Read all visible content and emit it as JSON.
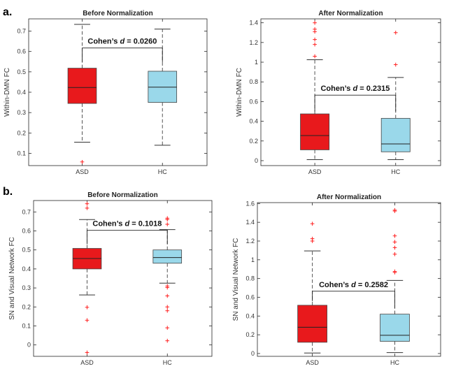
{
  "panel_labels": {
    "a": "a.",
    "b": "b."
  },
  "colors": {
    "asd": "#e8191c",
    "hc": "#9ad8ea",
    "outlier": "#ff2020",
    "whisker": "#555555",
    "median": "#222222"
  },
  "chart_data": [
    {
      "id": "a-left",
      "type": "boxplot",
      "title": "Before Normalization",
      "ylabel": "Within-DMN FC",
      "xlabel": "",
      "categories": [
        "ASD",
        "HC"
      ],
      "ylim": [
        0.04,
        0.76
      ],
      "yticks": [
        "0.1",
        "0.2",
        "0.3",
        "0.4",
        "0.5",
        "0.6",
        "0.7"
      ],
      "series": [
        {
          "name": "ASD",
          "q1": 0.345,
          "median": 0.423,
          "q3": 0.518,
          "whisker_low": 0.155,
          "whisker_high": 0.733,
          "outliers": [
            0.058
          ]
        },
        {
          "name": "HC",
          "q1": 0.35,
          "median": 0.425,
          "q3": 0.503,
          "whisker_low": 0.14,
          "whisker_high": 0.71,
          "outliers": []
        }
      ],
      "annotation": {
        "prefix": "Cohen’s ",
        "symbol": "d",
        "value": " = 0.0260",
        "bracket_y": 0.617,
        "left_y": 0.548,
        "right_y": 0.548
      }
    },
    {
      "id": "a-right",
      "type": "boxplot",
      "title": "After Normalization",
      "ylabel": "Within-DMN FC",
      "xlabel": "",
      "categories": [
        "ASD",
        "HC"
      ],
      "ylim": [
        -0.05,
        1.44
      ],
      "yticks": [
        "0",
        "0.2",
        "0.4",
        "0.6",
        "0.8",
        "1",
        "1.2",
        "1.4"
      ],
      "series": [
        {
          "name": "ASD",
          "q1": 0.11,
          "median": 0.255,
          "q3": 0.475,
          "whisker_low": 0.01,
          "whisker_high": 1.025,
          "outliers": [
            1.06,
            1.18,
            1.23,
            1.31,
            1.335,
            1.4
          ]
        },
        {
          "name": "HC",
          "q1": 0.09,
          "median": 0.17,
          "q3": 0.43,
          "whisker_low": 0.01,
          "whisker_high": 0.845,
          "outliers": [
            0.975,
            1.3
          ]
        }
      ],
      "annotation": {
        "prefix": "Cohen’s ",
        "symbol": "d",
        "value": " = 0.2315",
        "bracket_y": 0.665,
        "left_y": 0.5,
        "right_y": 0.5
      }
    },
    {
      "id": "b-left",
      "type": "boxplot",
      "title": "Before Normalization",
      "ylabel": "SN and Visual Network FC",
      "xlabel": "",
      "categories": [
        "ASD",
        "HC"
      ],
      "ylim": [
        -0.06,
        0.76
      ],
      "yticks": [
        "0",
        "0.1",
        "0.2",
        "0.3",
        "0.4",
        "0.5",
        "0.6",
        "0.7"
      ],
      "series": [
        {
          "name": "ASD",
          "q1": 0.4,
          "median": 0.455,
          "q3": 0.508,
          "whisker_low": 0.263,
          "whisker_high": 0.66,
          "outliers": [
            -0.04,
            0.13,
            0.198,
            0.72,
            0.743
          ]
        },
        {
          "name": "HC",
          "q1": 0.43,
          "median": 0.46,
          "q3": 0.5,
          "whisker_low": 0.325,
          "whisker_high": 0.607,
          "outliers": [
            0.022,
            0.09,
            0.18,
            0.2,
            0.258,
            0.302,
            0.31,
            0.635,
            0.66,
            0.667
          ]
        }
      ],
      "annotation": {
        "prefix": "Cohen’s ",
        "symbol": "d",
        "value": " = 0.1018",
        "bracket_y": 0.603,
        "left_y": 0.53,
        "right_y": 0.53
      }
    },
    {
      "id": "b-right",
      "type": "boxplot",
      "title": "After Normalization",
      "ylabel": "SN and Visual Network FC",
      "xlabel": "",
      "categories": [
        "ASD",
        "HC"
      ],
      "ylim": [
        -0.03,
        1.61
      ],
      "yticks": [
        "0",
        "0.2",
        "0.4",
        "0.6",
        "0.8",
        "1",
        "1.2",
        "1.4",
        "1.6"
      ],
      "series": [
        {
          "name": "ASD",
          "q1": 0.12,
          "median": 0.28,
          "q3": 0.515,
          "whisker_low": 0.005,
          "whisker_high": 1.095,
          "outliers": [
            1.2,
            1.225,
            1.385
          ]
        },
        {
          "name": "HC",
          "q1": 0.13,
          "median": 0.195,
          "q3": 0.42,
          "whisker_low": 0.01,
          "whisker_high": 0.78,
          "outliers": [
            0.865,
            0.875,
            1.06,
            1.13,
            1.19,
            1.255,
            1.52,
            1.53
          ]
        }
      ],
      "annotation": {
        "prefix": "Cohen’s ",
        "symbol": "d",
        "value": " = 0.2582",
        "bracket_y": 0.665,
        "left_y": 0.56,
        "right_y": 0.48
      }
    }
  ]
}
